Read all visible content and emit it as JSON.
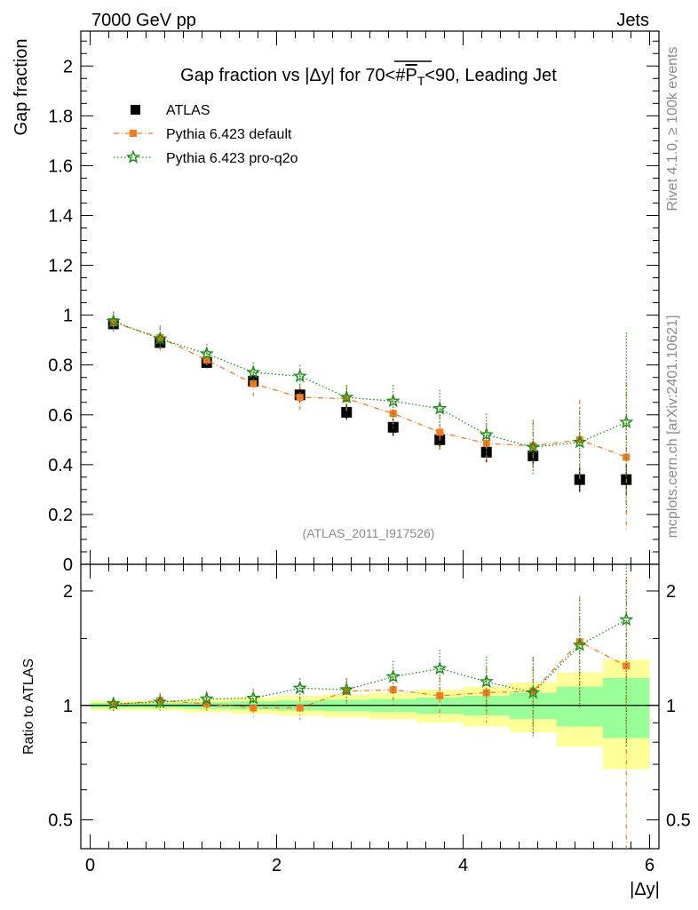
{
  "header": {
    "left": "7000 GeV pp",
    "right": "Jets"
  },
  "side_labels": {
    "rivet": "Rivet 4.1.0, ≥ 100k events",
    "mcplots": "mcplots.cern.ch [arXiv:2401.10621]"
  },
  "chart_data": {
    "type": "line",
    "title": "Gap fraction vs |Δy| for 70<#P_T<90, Leading Jet",
    "title_parts": {
      "pre": "Gap fraction vs |Δy| for 70<#",
      "bar": "P",
      "sub": "T",
      "post": "<90, Leading Jet"
    },
    "analysis_label": "(ATLAS_2011_I917526)",
    "xlabel": "|Δy|",
    "ylabel": "Gap fraction",
    "ratio_ylabel": "Ratio to ATLAS",
    "xlim": [
      -0.1,
      6.1
    ],
    "ylim": [
      0,
      2.14
    ],
    "ratio_ylim": [
      0.42,
      2.35
    ],
    "x_ticks": [
      0,
      2,
      4,
      6
    ],
    "x_tick_labels": [
      "0",
      "2",
      "4",
      "6"
    ],
    "y_ticks": [
      0,
      0.2,
      0.4,
      0.6,
      0.8,
      1,
      1.2,
      1.4,
      1.6,
      1.8,
      2
    ],
    "y_tick_labels": [
      "0",
      "0.2",
      "0.4",
      "0.6",
      "0.8",
      "1",
      "1.2",
      "1.4",
      "1.6",
      "1.8",
      "2"
    ],
    "ratio_ticks": [
      0.5,
      1,
      2
    ],
    "ratio_tick_labels": [
      "0.5",
      "1",
      "2"
    ],
    "bin_edges": [
      0,
      0.5,
      1,
      1.5,
      2,
      2.5,
      3,
      3.5,
      4,
      4.5,
      5,
      5.5,
      6
    ],
    "x": [
      0.25,
      0.75,
      1.25,
      1.75,
      2.25,
      2.75,
      3.25,
      3.75,
      4.25,
      4.75,
      5.25,
      5.75
    ],
    "series": [
      {
        "name": "ATLAS",
        "color": "#000000",
        "marker": "square",
        "values": [
          0.965,
          0.89,
          0.81,
          0.735,
          0.68,
          0.61,
          0.55,
          0.5,
          0.45,
          0.435,
          0.34,
          0.34
        ],
        "errors": [
          0.02,
          0.02,
          0.02,
          0.025,
          0.03,
          0.03,
          0.035,
          0.04,
          0.04,
          0.045,
          0.05,
          0.06
        ]
      },
      {
        "name": "Pythia 6.423 default",
        "color": "#f47b20",
        "marker": "square",
        "values": [
          0.97,
          0.91,
          0.82,
          0.725,
          0.67,
          0.665,
          0.605,
          0.53,
          0.485,
          0.475,
          0.5,
          0.43
        ],
        "errors": [
          0.04,
          0.05,
          0.04,
          0.05,
          0.05,
          0.05,
          0.06,
          0.07,
          0.08,
          0.1,
          0.16,
          0.3
        ]
      },
      {
        "name": "Pythia 6.423 pro-q2o",
        "color": "#1a8c1a",
        "marker": "star",
        "values": [
          0.975,
          0.905,
          0.845,
          0.77,
          0.755,
          0.67,
          0.655,
          0.625,
          0.52,
          0.47,
          0.49,
          0.57
        ],
        "errors": [
          0.04,
          0.04,
          0.04,
          0.04,
          0.045,
          0.05,
          0.065,
          0.075,
          0.085,
          0.11,
          0.14,
          0.36
        ]
      }
    ],
    "ratio_series": [
      {
        "name": "Pythia 6.423 default",
        "values": [
          1.005,
          1.03,
          1.01,
          0.985,
          0.985,
          1.09,
          1.1,
          1.06,
          1.08,
          1.09,
          1.47,
          1.27
        ],
        "errors": [
          0.04,
          0.05,
          0.05,
          0.06,
          0.07,
          0.08,
          0.1,
          0.13,
          0.18,
          0.25,
          0.47,
          0.88
        ]
      },
      {
        "name": "Pythia 6.423 pro-q2o",
        "values": [
          1.01,
          1.02,
          1.04,
          1.045,
          1.11,
          1.1,
          1.19,
          1.25,
          1.155,
          1.08,
          1.44,
          1.68
        ],
        "errors": [
          0.04,
          0.05,
          0.05,
          0.06,
          0.07,
          0.08,
          0.12,
          0.15,
          0.19,
          0.26,
          0.45,
          0.9
        ]
      }
    ],
    "ratio_band_yellow": [
      0.03,
      0.03,
      0.04,
      0.05,
      0.06,
      0.07,
      0.08,
      0.1,
      0.12,
      0.15,
      0.22,
      0.32
    ],
    "ratio_band_green": [
      0.015,
      0.015,
      0.02,
      0.025,
      0.03,
      0.035,
      0.04,
      0.05,
      0.06,
      0.08,
      0.12,
      0.18
    ]
  }
}
